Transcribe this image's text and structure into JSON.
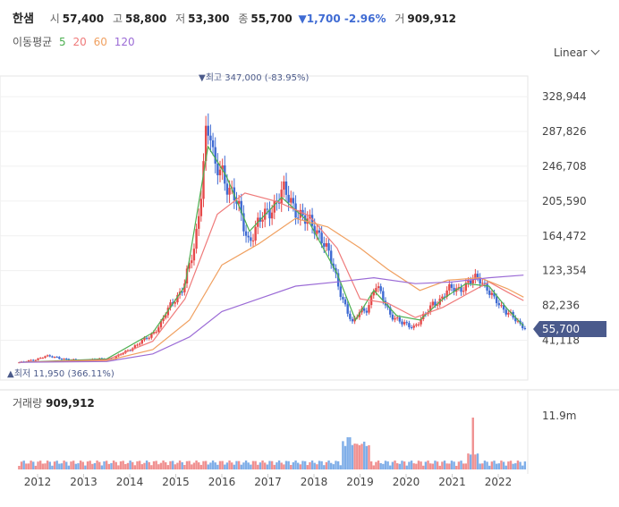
{
  "header": {
    "stock_name": "한샘",
    "open_label": "시",
    "open_value": "57,400",
    "high_label": "고",
    "high_value": "58,800",
    "low_label": "저",
    "low_value": "53,300",
    "close_label": "종",
    "close_value": "55,700",
    "change_value": "▼1,700 -2.96%",
    "volume_label": "거",
    "volume_value": "909,912"
  },
  "ma_legend": {
    "title": "이동평균",
    "periods": [
      "5",
      "20",
      "60",
      "120"
    ]
  },
  "colors": {
    "ma5": "#4caf50",
    "ma20": "#ef7a7a",
    "ma60": "#f0a060",
    "ma120": "#9b6bd6",
    "up": "#e64a4a",
    "down": "#3f6bd3",
    "price_tag": "#4a5a8c",
    "vol_up": "#f09090",
    "vol_down": "#7faee8"
  },
  "scale_select": {
    "value": "Linear"
  },
  "annotations": {
    "high_text": "▼최고 347,000 (-83.95%)",
    "low_text": "▲최저 11,950 (366.11%)"
  },
  "current_price_label": "55,700",
  "volume_panel": {
    "title": "거래량",
    "value": "909,912",
    "axis_label": "11.9m"
  },
  "chart_data": {
    "type": "candlestick",
    "y_axis_ticks": [
      "328,944",
      "287,826",
      "246,708",
      "205,590",
      "164,472",
      "123,354",
      "82,236",
      "41,118"
    ],
    "x_axis_ticks": [
      "2012",
      "2013",
      "2014",
      "2015",
      "2016",
      "2017",
      "2018",
      "2019",
      "2020",
      "2021",
      "2022"
    ],
    "series_close": [
      [
        "2011-09",
        15000
      ],
      [
        "2011-12",
        18000
      ],
      [
        "2012-03",
        22000
      ],
      [
        "2012-06",
        21000
      ],
      [
        "2012-09",
        18000
      ],
      [
        "2012-12",
        17000
      ],
      [
        "2013-03",
        18000
      ],
      [
        "2013-06",
        19000
      ],
      [
        "2013-09",
        20000
      ],
      [
        "2013-12",
        28000
      ],
      [
        "2014-03",
        36000
      ],
      [
        "2014-06",
        45000
      ],
      [
        "2014-09",
        60000
      ],
      [
        "2014-12",
        85000
      ],
      [
        "2015-03",
        105000
      ],
      [
        "2015-06",
        150000
      ],
      [
        "2015-08",
        240000
      ],
      [
        "2015-09",
        300000
      ],
      [
        "2015-10",
        280000
      ],
      [
        "2015-11",
        240000
      ],
      [
        "2016-01",
        245000
      ],
      [
        "2016-03",
        220000
      ],
      [
        "2016-05",
        200000
      ],
      [
        "2016-08",
        160000
      ],
      [
        "2016-11",
        180000
      ],
      [
        "2017-02",
        200000
      ],
      [
        "2017-05",
        215000
      ],
      [
        "2017-08",
        200000
      ],
      [
        "2017-11",
        180000
      ],
      [
        "2018-01",
        175000
      ],
      [
        "2018-03",
        165000
      ],
      [
        "2018-05",
        140000
      ],
      [
        "2018-07",
        110000
      ],
      [
        "2018-09",
        85000
      ],
      [
        "2018-11",
        60000
      ],
      [
        "2019-01",
        75000
      ],
      [
        "2019-03",
        80000
      ],
      [
        "2019-05",
        105000
      ],
      [
        "2019-07",
        90000
      ],
      [
        "2019-09",
        72000
      ],
      [
        "2019-12",
        60000
      ],
      [
        "2020-03",
        58000
      ],
      [
        "2020-06",
        70000
      ],
      [
        "2020-08",
        85000
      ],
      [
        "2020-10",
        90000
      ],
      [
        "2020-12",
        100000
      ],
      [
        "2021-03",
        103000
      ],
      [
        "2021-06",
        110000
      ],
      [
        "2021-08",
        115000
      ],
      [
        "2021-10",
        105000
      ],
      [
        "2021-12",
        88000
      ],
      [
        "2022-02",
        78000
      ],
      [
        "2022-04",
        75000
      ],
      [
        "2022-06",
        62000
      ],
      [
        "2022-07",
        55700
      ]
    ],
    "series_ma": [
      {
        "name": "5",
        "values": [
          [
            2011.6,
            15000
          ],
          [
            2013.5,
            19000
          ],
          [
            2014.5,
            50000
          ],
          [
            2015.2,
            105000
          ],
          [
            2015.7,
            270000
          ],
          [
            2016.1,
            235000
          ],
          [
            2016.6,
            170000
          ],
          [
            2017.3,
            210000
          ],
          [
            2017.9,
            180000
          ],
          [
            2018.5,
            120000
          ],
          [
            2018.9,
            65000
          ],
          [
            2019.3,
            100000
          ],
          [
            2019.8,
            70000
          ],
          [
            2020.3,
            65000
          ],
          [
            2020.8,
            90000
          ],
          [
            2021.3,
            108000
          ],
          [
            2021.8,
            105000
          ],
          [
            2022.2,
            78000
          ],
          [
            2022.55,
            58000
          ]
        ]
      },
      {
        "name": "20",
        "values": [
          [
            2011.6,
            15000
          ],
          [
            2013.5,
            18000
          ],
          [
            2014.5,
            40000
          ],
          [
            2015.2,
            90000
          ],
          [
            2015.9,
            190000
          ],
          [
            2016.5,
            215000
          ],
          [
            2017.2,
            205000
          ],
          [
            2017.9,
            188000
          ],
          [
            2018.5,
            150000
          ],
          [
            2019.0,
            90000
          ],
          [
            2019.6,
            85000
          ],
          [
            2020.2,
            68000
          ],
          [
            2020.8,
            80000
          ],
          [
            2021.3,
            95000
          ],
          [
            2021.8,
            110000
          ],
          [
            2022.2,
            98000
          ],
          [
            2022.55,
            88000
          ]
        ]
      },
      {
        "name": "60",
        "values": [
          [
            2011.6,
            15000
          ],
          [
            2013.5,
            17000
          ],
          [
            2014.5,
            30000
          ],
          [
            2015.3,
            65000
          ],
          [
            2016.0,
            130000
          ],
          [
            2016.8,
            155000
          ],
          [
            2017.6,
            185000
          ],
          [
            2018.3,
            175000
          ],
          [
            2019.0,
            150000
          ],
          [
            2019.6,
            125000
          ],
          [
            2020.3,
            100000
          ],
          [
            2020.9,
            112000
          ],
          [
            2021.6,
            115000
          ],
          [
            2022.2,
            102000
          ],
          [
            2022.55,
            92000
          ]
        ]
      },
      {
        "name": "120",
        "values": [
          [
            2011.6,
            15000
          ],
          [
            2013.5,
            16000
          ],
          [
            2014.5,
            25000
          ],
          [
            2015.3,
            45000
          ],
          [
            2016.0,
            75000
          ],
          [
            2016.8,
            90000
          ],
          [
            2017.6,
            105000
          ],
          [
            2018.5,
            110000
          ],
          [
            2019.3,
            115000
          ],
          [
            2020.2,
            108000
          ],
          [
            2021.0,
            110000
          ],
          [
            2021.8,
            115000
          ],
          [
            2022.55,
            118000
          ]
        ]
      }
    ],
    "high": 347000,
    "low": 11950,
    "last": 55700
  }
}
